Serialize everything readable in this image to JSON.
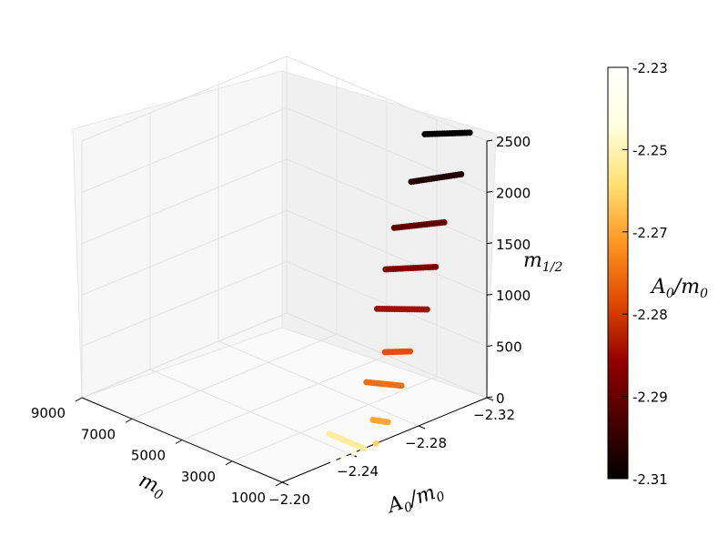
{
  "chart_data": {
    "type": "scatter",
    "projection": "3d",
    "grid": true,
    "axes": {
      "x": {
        "label": "m",
        "label_sub": "0",
        "ticks": [
          "9000",
          "7000",
          "5000",
          "3000",
          "1000"
        ],
        "range": [
          1000,
          9000
        ]
      },
      "y": {
        "label": "A",
        "label_sub": "0",
        "label_rest": "/m",
        "label_sub2": "0",
        "ticks": [
          "−2.20",
          "−2.24",
          "−2.28",
          "−2.32"
        ],
        "range": [
          -2.2,
          -2.32
        ]
      },
      "z": {
        "label": "m",
        "label_sub": "1/2",
        "ticks": [
          "0",
          "500",
          "1000",
          "1500",
          "2000",
          "2500"
        ],
        "range": [
          0,
          2500
        ]
      }
    },
    "colorbar": {
      "label": "A",
      "label_sub": "0",
      "label_rest": "/m",
      "label_sub2": "0",
      "ticks": [
        "-2.23",
        "-2.25",
        "-2.27",
        "-2.28",
        "-2.29",
        "-2.31"
      ],
      "range": [
        -2.31,
        -2.23
      ],
      "colormap": "afmhot",
      "colors": [
        "#000000",
        "#4a0000",
        "#950000",
        "#e04a00",
        "#ff9520",
        "#ffe070",
        "#ffffdf",
        "#ffffff"
      ]
    },
    "series": [
      {
        "a0_over_m0": -2.31,
        "m0_start": 1000,
        "m0_end": 2800,
        "m_half_start": 2650,
        "m_half_end": 2450,
        "color_value": -2.31
      },
      {
        "a0_over_m0": -2.305,
        "m0_start": 1000,
        "m0_end": 3000,
        "m_half_start": 2280,
        "m_half_end": 2000,
        "color_value": -2.305
      },
      {
        "a0_over_m0": -2.295,
        "m0_start": 1000,
        "m0_end": 3000,
        "m_half_start": 1880,
        "m_half_end": 1620,
        "color_value": -2.295
      },
      {
        "a0_over_m0": -2.29,
        "m0_start": 1000,
        "m0_end": 3000,
        "m_half_start": 1480,
        "m_half_end": 1250,
        "color_value": -2.29
      },
      {
        "a0_over_m0": -2.285,
        "m0_start": 1000,
        "m0_end": 3000,
        "m_half_start": 1100,
        "m_half_end": 900,
        "color_value": -2.285
      },
      {
        "a0_over_m0": -2.275,
        "m0_start": 1000,
        "m0_end": 2000,
        "m_half_start": 760,
        "m_half_end": 650,
        "color_value": -2.275
      },
      {
        "a0_over_m0": -2.27,
        "m0_start": 1000,
        "m0_end": 2400,
        "m_half_start": 460,
        "m_half_end": 350,
        "color_value": -2.27
      },
      {
        "a0_over_m0": -2.262,
        "m0_start": 1000,
        "m0_end": 1600,
        "m_half_start": 160,
        "m_half_end": 120,
        "color_value": -2.262
      },
      {
        "a0_over_m0": -2.255,
        "m0_start": 1000,
        "m0_end": 1000,
        "m_half_start": 0,
        "m_half_end": 0,
        "color_value": -2.255
      },
      {
        "a0_over_m0": -2.248,
        "m0_start": 1000,
        "m0_end": 2400,
        "m_half_start": 0,
        "m_half_end": 0,
        "color_value": -2.248
      },
      {
        "a0_over_m0": -2.242,
        "m0_start": 1000,
        "m0_end": 1000,
        "m_half_start": 0,
        "m_half_end": 0,
        "color_value": -2.242
      },
      {
        "a0_over_m0": -2.236,
        "m0_start": 1000,
        "m0_end": 1000,
        "m_half_start": 0,
        "m_half_end": 0,
        "color_value": -2.236
      },
      {
        "a0_over_m0": -2.23,
        "m0_start": 1000,
        "m0_end": 1000,
        "m_half_start": 0,
        "m_half_end": 0,
        "color_value": -2.23
      }
    ]
  }
}
